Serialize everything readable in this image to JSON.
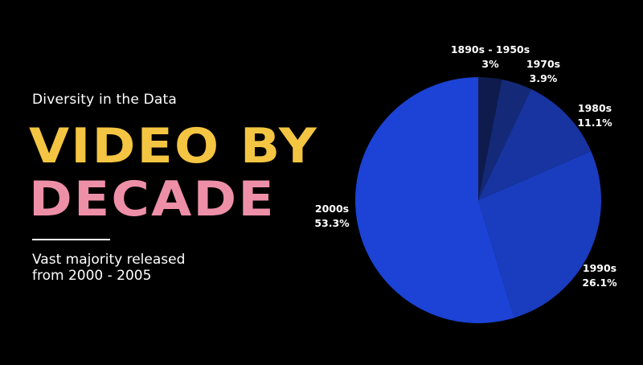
{
  "header": {
    "kicker": "Diversity in the Data",
    "title_line1": "VIDEO BY",
    "title_line2": "DECADE",
    "subtitle_line1": "Vast majority released",
    "subtitle_line2": "from 2000 - 2005"
  },
  "colors": {
    "title_line1": "#F4C542",
    "title_line2": "#EE8FA8",
    "background": "#000000"
  },
  "chart_data": {
    "type": "pie",
    "categories": [
      "1890s - 1950s",
      "1970s",
      "1980s",
      "1990s",
      "2000s"
    ],
    "values": [
      3,
      3.9,
      11.1,
      26.1,
      53.3
    ],
    "labels": [
      "3%",
      "3.9%",
      "11.1%",
      "26.1%",
      "53.3%"
    ],
    "colors": [
      "#0F1B4D",
      "#142A78",
      "#1734A0",
      "#1A3DBF",
      "#1C43D6"
    ],
    "title": "",
    "legend": "none"
  }
}
